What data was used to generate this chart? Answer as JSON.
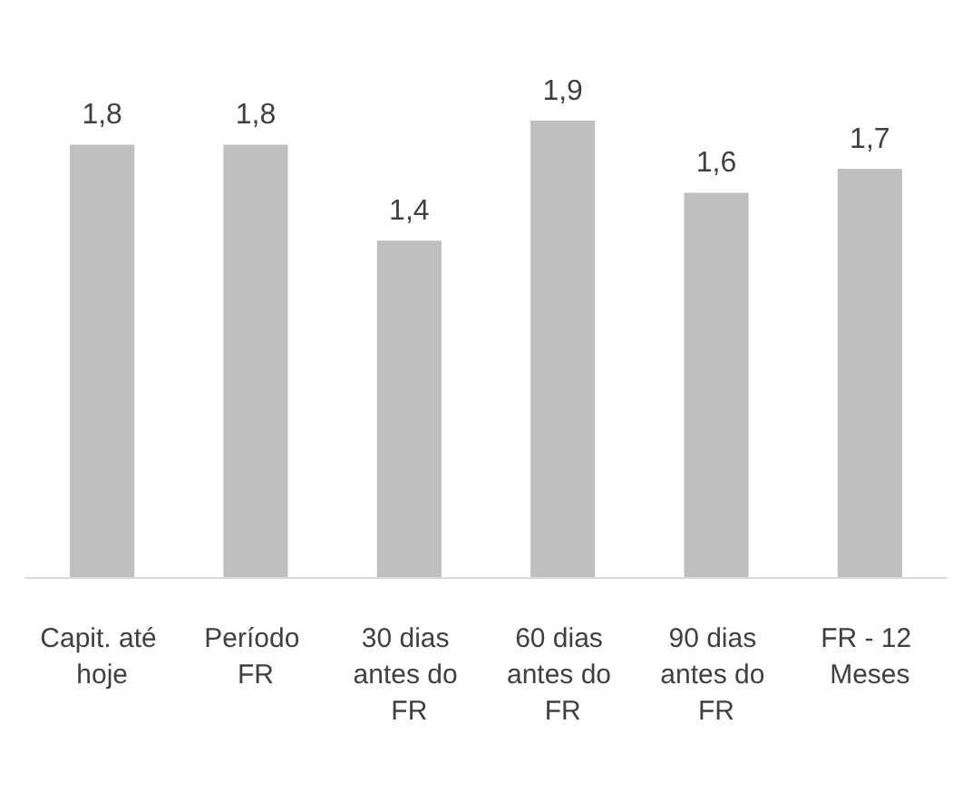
{
  "chart_data": {
    "type": "bar",
    "categories": [
      "Capit. até hoje",
      "Período FR",
      "30 dias antes do FR",
      "60 dias antes do FR",
      "90 dias antes do FR",
      "FR - 12 Meses"
    ],
    "values": [
      1.8,
      1.8,
      1.4,
      1.9,
      1.6,
      1.7
    ],
    "value_labels": [
      "1,8",
      "1,8",
      "1,4",
      "1,9",
      "1,6",
      "1,7"
    ],
    "color": "#bfbfbf"
  }
}
